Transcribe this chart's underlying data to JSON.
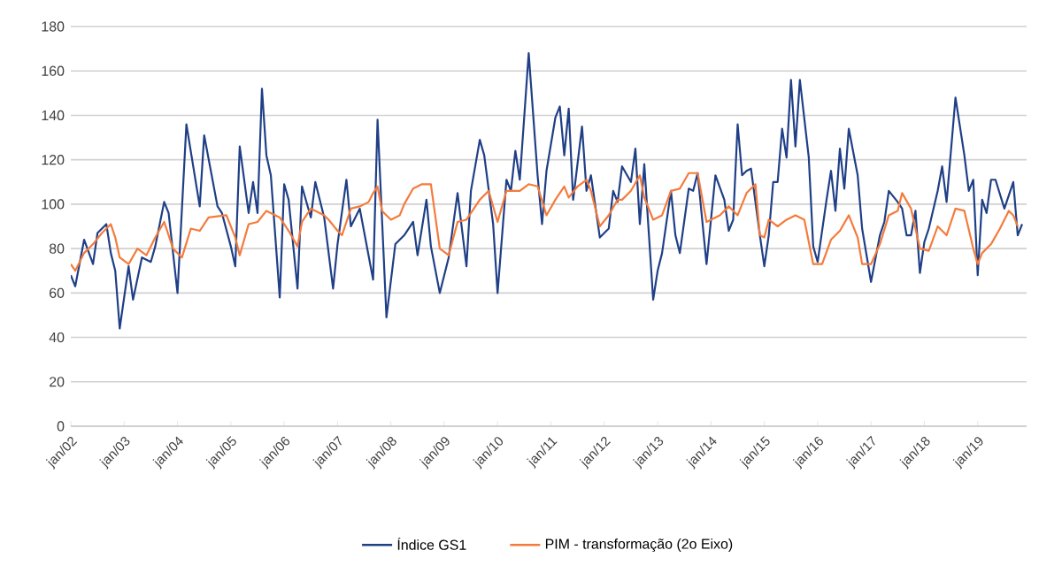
{
  "chart_data": {
    "type": "line",
    "legend": "bottom",
    "grid": "y",
    "ylim": [
      0,
      180
    ],
    "yticks": [
      0,
      20,
      40,
      60,
      80,
      100,
      120,
      140,
      160,
      180
    ],
    "xlim": [
      "2002-01",
      "2019-12"
    ],
    "xticks": [
      {
        "value": "2002-01",
        "label": "jan/02"
      },
      {
        "value": "2003-01",
        "label": "jan/03"
      },
      {
        "value": "2004-01",
        "label": "jan/04"
      },
      {
        "value": "2005-01",
        "label": "jan/05"
      },
      {
        "value": "2006-01",
        "label": "jan/06"
      },
      {
        "value": "2007-01",
        "label": "jan/07"
      },
      {
        "value": "2008-01",
        "label": "jan/08"
      },
      {
        "value": "2009-01",
        "label": "jan/09"
      },
      {
        "value": "2010-01",
        "label": "jan/10"
      },
      {
        "value": "2011-01",
        "label": "jan/11"
      },
      {
        "value": "2012-01",
        "label": "jan/12"
      },
      {
        "value": "2013-01",
        "label": "jan/13"
      },
      {
        "value": "2014-01",
        "label": "jan/14"
      },
      {
        "value": "2015-01",
        "label": "jan/15"
      },
      {
        "value": "2016-01",
        "label": "jan/16"
      },
      {
        "value": "2017-01",
        "label": "jan/17"
      },
      {
        "value": "2018-01",
        "label": "jan/18"
      },
      {
        "value": "2019-01",
        "label": "jan/19"
      }
    ],
    "series": [
      {
        "name": "Índice GS1",
        "color": "#1f3f86",
        "x": [
          "2002-01",
          "2002-02",
          "2002-04",
          "2002-06",
          "2002-07",
          "2002-09",
          "2002-10",
          "2002-11",
          "2002-12",
          "2003-02",
          "2003-03",
          "2003-05",
          "2003-07",
          "2003-08",
          "2003-10",
          "2003-11",
          "2004-01",
          "2004-03",
          "2004-06",
          "2004-07",
          "2004-10",
          "2004-11",
          "2005-01",
          "2005-02",
          "2005-03",
          "2005-05",
          "2005-06",
          "2005-07",
          "2005-08",
          "2005-09",
          "2005-10",
          "2005-12",
          "2006-01",
          "2006-02",
          "2006-04",
          "2006-05",
          "2006-07",
          "2006-08",
          "2006-10",
          "2006-12",
          "2007-01",
          "2007-03",
          "2007-04",
          "2007-06",
          "2007-09",
          "2007-10",
          "2007-12",
          "2008-02",
          "2008-04",
          "2008-06",
          "2008-07",
          "2008-09",
          "2008-10",
          "2008-12",
          "2009-02",
          "2009-04",
          "2009-06",
          "2009-07",
          "2009-09",
          "2009-10",
          "2009-12",
          "2010-01",
          "2010-03",
          "2010-04",
          "2010-05",
          "2010-06",
          "2010-08",
          "2010-10",
          "2010-11",
          "2010-12",
          "2011-02",
          "2011-03",
          "2011-04",
          "2011-05",
          "2011-06",
          "2011-08",
          "2011-09",
          "2011-10",
          "2011-12",
          "2012-02",
          "2012-03",
          "2012-04",
          "2012-05",
          "2012-07",
          "2012-08",
          "2012-09",
          "2012-10",
          "2012-12",
          "2013-01",
          "2013-02",
          "2013-04",
          "2013-05",
          "2013-06",
          "2013-08",
          "2013-09",
          "2013-10",
          "2013-12",
          "2014-02",
          "2014-04",
          "2014-05",
          "2014-06",
          "2014-07",
          "2014-08",
          "2014-09",
          "2014-10",
          "2014-12",
          "2015-01",
          "2015-02",
          "2015-03",
          "2015-04",
          "2015-05",
          "2015-06",
          "2015-07",
          "2015-08",
          "2015-09",
          "2015-11",
          "2015-12",
          "2016-01",
          "2016-03",
          "2016-04",
          "2016-05",
          "2016-06",
          "2016-07",
          "2016-08",
          "2016-10",
          "2016-11",
          "2017-01",
          "2017-03",
          "2017-04",
          "2017-05",
          "2017-07",
          "2017-08",
          "2017-09",
          "2017-10",
          "2017-11",
          "2017-12",
          "2018-01",
          "2018-02",
          "2018-04",
          "2018-05",
          "2018-06",
          "2018-08",
          "2018-10",
          "2018-11",
          "2018-12",
          "2019-01",
          "2019-02",
          "2019-03",
          "2019-04",
          "2019-05",
          "2019-07",
          "2019-09",
          "2019-10",
          "2019-11"
        ],
        "values": [
          68,
          63,
          84,
          73,
          87,
          91,
          78,
          70,
          44,
          72,
          57,
          76,
          74,
          81,
          101,
          96,
          60,
          136,
          99,
          131,
          99,
          96,
          81,
          72,
          126,
          96,
          110,
          96,
          152,
          122,
          113,
          58,
          109,
          102,
          62,
          108,
          94,
          110,
          94,
          62,
          82,
          111,
          90,
          98,
          66,
          138,
          49,
          82,
          86,
          92,
          77,
          102,
          81,
          60,
          76,
          105,
          72,
          106,
          129,
          122,
          91,
          60,
          111,
          106,
          124,
          111,
          168,
          113,
          91,
          115,
          139,
          144,
          122,
          143,
          102,
          135,
          106,
          113,
          85,
          89,
          106,
          101,
          117,
          110,
          125,
          91,
          118,
          57,
          70,
          78,
          106,
          86,
          78,
          107,
          106,
          114,
          73,
          113,
          102,
          88,
          93,
          136,
          113,
          115,
          116,
          86,
          72,
          86,
          110,
          110,
          134,
          121,
          156,
          126,
          156,
          121,
          81,
          74,
          102,
          115,
          97,
          125,
          107,
          134,
          113,
          89,
          65,
          86,
          92,
          106,
          101,
          98,
          86,
          86,
          97,
          69,
          83,
          89,
          106,
          117,
          101,
          148,
          122,
          106,
          111,
          68,
          102,
          96,
          111,
          111,
          98,
          110,
          86,
          91
        ]
      },
      {
        "name": "PIM - transformação (2o Eixo)",
        "color": "#f47b3c",
        "x": [
          "2002-01",
          "2002-02",
          "2002-04",
          "2002-06",
          "2002-08",
          "2002-09",
          "2002-10",
          "2002-11",
          "2002-12",
          "2003-02",
          "2003-04",
          "2003-06",
          "2003-08",
          "2003-10",
          "2003-12",
          "2004-02",
          "2004-04",
          "2004-06",
          "2004-08",
          "2004-12",
          "2005-02",
          "2005-03",
          "2005-05",
          "2005-07",
          "2005-09",
          "2005-12",
          "2006-02",
          "2006-04",
          "2006-05",
          "2006-07",
          "2006-10",
          "2006-11",
          "2007-01",
          "2007-02",
          "2007-04",
          "2007-06",
          "2007-08",
          "2007-09",
          "2007-10",
          "2007-11",
          "2008-01",
          "2008-03",
          "2008-04",
          "2008-06",
          "2008-08",
          "2008-09",
          "2008-10",
          "2008-12",
          "2009-02",
          "2009-04",
          "2009-06",
          "2009-08",
          "2009-09",
          "2009-11",
          "2010-01",
          "2010-03",
          "2010-06",
          "2010-08",
          "2010-10",
          "2010-12",
          "2011-02",
          "2011-04",
          "2011-05",
          "2011-07",
          "2011-09",
          "2011-10",
          "2011-12",
          "2012-02",
          "2012-04",
          "2012-05",
          "2012-07",
          "2012-09",
          "2012-10",
          "2012-12",
          "2013-02",
          "2013-04",
          "2013-06",
          "2013-08",
          "2013-10",
          "2013-12",
          "2014-03",
          "2014-05",
          "2014-07",
          "2014-09",
          "2014-10",
          "2014-11",
          "2014-12",
          "2015-01",
          "2015-02",
          "2015-04",
          "2015-06",
          "2015-08",
          "2015-10",
          "2015-12",
          "2016-02",
          "2016-04",
          "2016-06",
          "2016-08",
          "2016-10",
          "2016-11",
          "2017-01",
          "2017-03",
          "2017-05",
          "2017-07",
          "2017-08",
          "2017-10",
          "2017-12",
          "2018-02",
          "2018-04",
          "2018-06",
          "2018-08",
          "2018-10",
          "2018-12",
          "2019-01",
          "2019-02",
          "2019-04",
          "2019-06",
          "2019-08",
          "2019-09",
          "2019-10"
        ],
        "values": [
          73,
          70,
          78,
          82,
          87,
          89,
          91,
          85,
          76,
          73,
          80,
          77,
          85,
          92,
          80,
          76,
          89,
          88,
          94,
          95,
          85,
          77,
          91,
          92,
          97,
          94,
          88,
          81,
          92,
          98,
          95,
          93,
          88,
          86,
          98,
          99,
          101,
          105,
          108,
          97,
          93,
          95,
          100,
          107,
          109,
          109,
          109,
          80,
          77,
          92,
          93,
          99,
          102,
          106,
          92,
          106,
          106,
          109,
          108,
          95,
          102,
          108,
          103,
          108,
          111,
          106,
          90,
          95,
          102,
          102,
          106,
          113,
          103,
          93,
          95,
          106,
          107,
          114,
          114,
          92,
          95,
          99,
          95,
          105,
          107,
          109,
          86,
          85,
          93,
          90,
          93,
          95,
          93,
          73,
          73,
          84,
          88,
          95,
          85,
          73,
          73,
          82,
          95,
          97,
          105,
          98,
          80,
          79,
          90,
          86,
          98,
          97,
          80,
          73,
          78,
          82,
          89,
          97,
          95,
          90
        ]
      }
    ]
  }
}
